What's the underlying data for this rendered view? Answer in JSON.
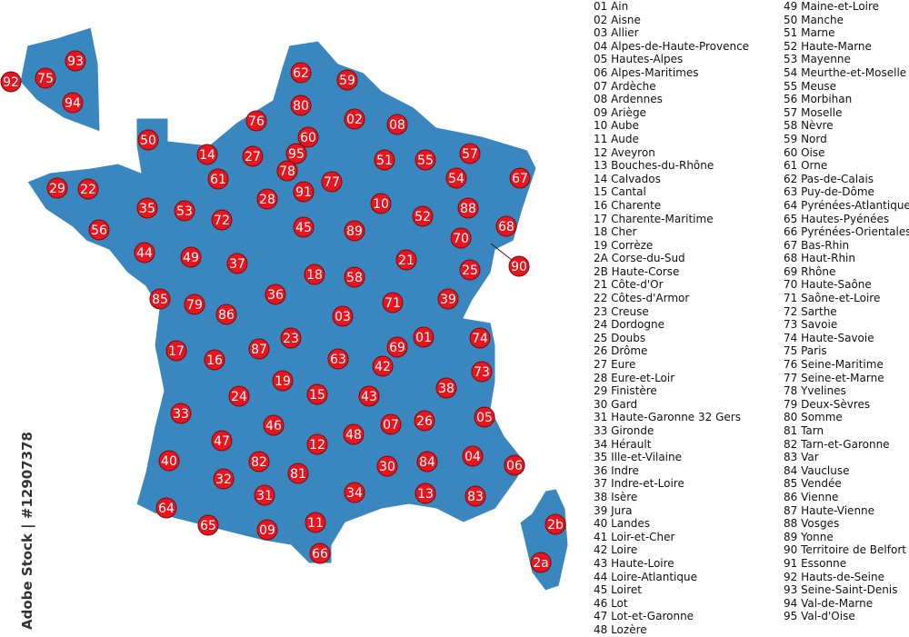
{
  "map": {
    "land_color": "#3a87c0",
    "border_color": "#ffffff",
    "marker_color": "#e8141e",
    "marker_text_color": "#ffffff",
    "markers": [
      "62",
      "59",
      "80",
      "02",
      "08",
      "76",
      "60",
      "50",
      "14",
      "27",
      "95",
      "78",
      "91",
      "77",
      "51",
      "55",
      "57",
      "54",
      "67",
      "61",
      "29",
      "22",
      "35",
      "53",
      "72",
      "28",
      "45",
      "10",
      "52",
      "88",
      "68",
      "56",
      "44",
      "49",
      "37",
      "89",
      "21",
      "70",
      "25",
      "90",
      "18",
      "58",
      "36",
      "85",
      "79",
      "86",
      "71",
      "39",
      "03",
      "01",
      "74",
      "73",
      "23",
      "87",
      "17",
      "16",
      "69",
      "42",
      "63",
      "19",
      "15",
      "43",
      "38",
      "24",
      "33",
      "26",
      "07",
      "05",
      "46",
      "48",
      "47",
      "12",
      "04",
      "06",
      "40",
      "82",
      "84",
      "30",
      "81",
      "32",
      "13",
      "83",
      "34",
      "31",
      "64",
      "65",
      "09",
      "11",
      "66",
      "2b",
      "2a",
      "93",
      "75",
      "92",
      "94"
    ]
  },
  "credit": "Adobe Stock | #12907378",
  "legend": {
    "col1": [
      "01 Ain",
      "02 Aisne",
      "03 Allier",
      "04 Alpes-de-Haute-Provence",
      "05 Hautes-Alpes",
      "06 Alpes-Maritimes",
      "07 Ardèche",
      "08 Ardennes",
      "09 Ariège",
      "10 Aube",
      "11 Aude",
      "12 Aveyron",
      "13 Bouches-du-Rhône",
      "14 Calvados",
      "15 Cantal",
      "16 Charente",
      "17 Charente-Maritime",
      "18 Cher",
      "19 Corrèze",
      "2A Corse-du-Sud",
      "2B Haute-Corse",
      "21 Côte-d'Or",
      "22 Côtes-d'Armor",
      "23 Creuse",
      "24 Dordogne",
      "25 Doubs",
      "26 Drôme",
      "27 Eure",
      "28 Eure-et-Loir",
      "29 Finistère",
      "30 Gard",
      "31 Haute-Garonne 32 Gers",
      "33 Gironde",
      "34 Hérault",
      "35 Ille-et-Vilaine",
      "36 Indre",
      "37 Indre-et-Loire",
      "38 Isère",
      "39 Jura",
      "40 Landes",
      "41 Loir-et-Cher",
      "42 Loire",
      "43 Haute-Loire",
      "44 Loire-Atlantique",
      "45 Loiret",
      "46 Lot",
      "47 Lot-et-Garonne",
      "48 Lozère"
    ],
    "col2": [
      "49 Maine-et-Loire",
      "50 Manche",
      "51 Marne",
      "52 Haute-Marne",
      "53 Mayenne",
      "54 Meurthe-et-Moselle",
      "55 Meuse",
      "56 Morbihan",
      "57 Moselle",
      "58 Nèvre",
      "59 Nord",
      "60 Oise",
      "61 Orne",
      "62 Pas-de-Calais",
      "63 Puy-de-Dôme",
      "64 Pyrénées-Atlantiques",
      "65 Hautes-Pyénées",
      "66 Pyrénées-Orientales",
      "67 Bas-Rhin",
      "68 Haut-Rhin",
      "69 Rhône",
      "70 Haute-Saône",
      "71 Saône-et-Loire",
      "72 Sarthe",
      "73 Savoie",
      "74 Haute-Savoie",
      "75 Paris",
      "76 Seine-Maritime",
      "77 Seine-et-Marne",
      "78 Yvelines",
      "79 Deux-Sèvres",
      "80 Somme",
      "81 Tarn",
      "82 Tarn-et-Garonne",
      "83 Var",
      "84 Vaucluse",
      "85 Vendée",
      "86 Vienne",
      "87 Haute-Vienne",
      "88 Vosges",
      "89 Yonne",
      "90 Territoire de Belfort",
      "91 Essonne",
      "92 Hauts-de-Seine",
      "93 Seine-Saint-Denis",
      "94 Val-de-Marne",
      "95 Val-d'Oise"
    ]
  }
}
